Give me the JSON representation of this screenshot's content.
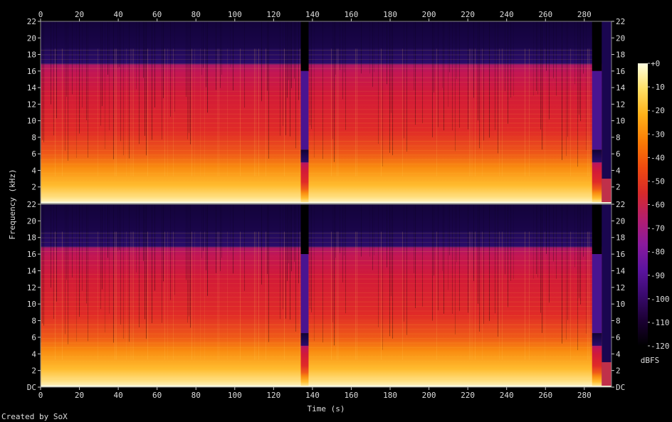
{
  "chart_data": {
    "type": "heatmap",
    "subtype": "spectrogram",
    "channels": 2,
    "xlabel": "Time (s)",
    "ylabel": "Frequency (kHz)",
    "x_ticks": [
      "0",
      "20",
      "40",
      "60",
      "80",
      "100",
      "120",
      "140",
      "160",
      "180",
      "200",
      "220",
      "240",
      "260",
      "280"
    ],
    "x_tick_values": [
      0,
      20,
      40,
      60,
      80,
      100,
      120,
      140,
      160,
      180,
      200,
      220,
      240,
      260,
      280
    ],
    "xlim": [
      0,
      294
    ],
    "y_ticks_top": [
      "2",
      "4",
      "6",
      "8",
      "10",
      "12",
      "14",
      "16",
      "18",
      "20",
      "22"
    ],
    "y_ticks_bottom": [
      "DC",
      "2",
      "4",
      "6",
      "8",
      "10",
      "12",
      "14",
      "16",
      "18",
      "20",
      "22"
    ],
    "y_tick_values_top": [
      2,
      4,
      6,
      8,
      10,
      12,
      14,
      16,
      18,
      20,
      22
    ],
    "y_tick_values_bottom": [
      0,
      2,
      4,
      6,
      8,
      10,
      12,
      14,
      16,
      18,
      20,
      22
    ],
    "ylim": [
      0,
      22
    ],
    "colorbar": {
      "label": "dBFS",
      "ticks": [
        "+0",
        "-10",
        "-20",
        "-30",
        "-40",
        "-50",
        "-60",
        "-70",
        "-80",
        "-90",
        "-100",
        "-110",
        "-120"
      ],
      "tick_values": [
        0,
        -10,
        -20,
        -30,
        -40,
        -50,
        -60,
        -70,
        -80,
        -90,
        -100,
        -110,
        -120
      ],
      "range": [
        -120,
        0
      ],
      "colors": [
        "#000000",
        "#1b0033",
        "#3a0a6e",
        "#5c14a0",
        "#8a1a9e",
        "#b41e6e",
        "#d62a2a",
        "#ef4a10",
        "#fa7a05",
        "#ffb21a",
        "#ffe066",
        "#ffffe0"
      ]
    },
    "silent_gaps_s": [
      [
        134,
        138
      ],
      [
        284,
        289
      ]
    ],
    "brighter_band_khz": [
      0,
      6
    ],
    "cutoff_khz": 18.7
  },
  "footer": {
    "credit": "Created by SoX"
  }
}
